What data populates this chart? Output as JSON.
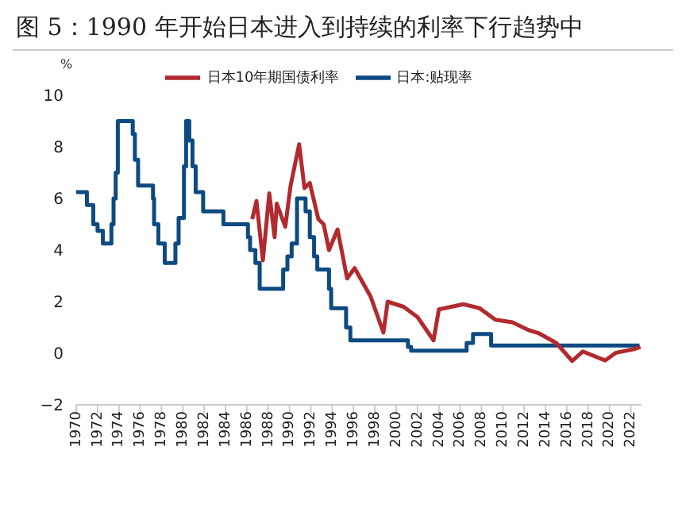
{
  "chart_data": {
    "type": "line",
    "title": "图 5：1990 年开始日本进入到持续的利率下行趋势中",
    "ylabel": "%",
    "xlim": [
      1970,
      2023
    ],
    "xticks": [
      1970,
      1972,
      1974,
      1976,
      1978,
      1980,
      1982,
      1984,
      1986,
      1988,
      1990,
      1992,
      1994,
      1996,
      1998,
      2000,
      2002,
      2004,
      2006,
      2008,
      2010,
      2012,
      2014,
      2016,
      2018,
      2020,
      2022
    ],
    "ylim": [
      -2,
      10
    ],
    "yticks": [
      -2,
      0,
      2,
      4,
      6,
      8,
      10
    ],
    "grid": false,
    "legend": "top",
    "marker": "none",
    "line_style": "solid",
    "series": [
      {
        "name": "日本:贴现率",
        "type": "step",
        "color": "#0e4a82",
        "x": [
          1970,
          1971,
          1971.6,
          1972,
          1972.5,
          1973.3,
          1973.5,
          1973.7,
          1973.9,
          1975.3,
          1975.5,
          1975.8,
          1977.2,
          1977.3,
          1977.7,
          1978.3,
          1979.3,
          1979.6,
          1980.1,
          1980.3,
          1980.6,
          1980.9,
          1981.2,
          1981.9,
          1983.8,
          1986.1,
          1986.3,
          1986.8,
          1987.2,
          1989.4,
          1989.8,
          1990.2,
          1990.7,
          1991.5,
          1991.9,
          1992.3,
          1992.6,
          1993.7,
          1993.9,
          1995.3,
          1995.7,
          2001.1,
          2001.4,
          2006.6,
          2007.2,
          2008.9,
          2022.8
        ],
        "values": [
          6.25,
          5.75,
          5.0,
          4.75,
          4.25,
          5.0,
          6.0,
          7.0,
          9.0,
          8.5,
          7.5,
          6.5,
          6.0,
          5.0,
          4.25,
          3.5,
          4.25,
          5.25,
          7.25,
          9.0,
          8.25,
          7.25,
          6.25,
          5.5,
          5.0,
          4.5,
          4.0,
          3.5,
          2.5,
          3.25,
          3.75,
          4.25,
          6.0,
          5.5,
          4.5,
          3.75,
          3.25,
          2.5,
          1.75,
          1.0,
          0.5,
          0.25,
          0.1,
          0.4,
          0.75,
          0.3,
          0.3
        ]
      },
      {
        "name": "日本10年期国债利率",
        "type": "line",
        "color": "#b22a2e",
        "x": [
          1986.5,
          1986.9,
          1987.5,
          1988.1,
          1988.6,
          1988.8,
          1989.6,
          1990.1,
          1990.9,
          1991.4,
          1991.9,
          1992.7,
          1993.2,
          1993.7,
          1994.5,
          1995.4,
          1996.1,
          1997.6,
          1998.8,
          1999.2,
          2000.7,
          2002,
          2003.5,
          2004,
          2006.3,
          2007.8,
          2009.3,
          2010.9,
          2012.4,
          2013.4,
          2015,
          2016.5,
          2017.5,
          2019.6,
          2020.6,
          2022.4,
          2022.9
        ],
        "values": [
          5.2,
          5.9,
          3.6,
          6.2,
          4.5,
          5.8,
          4.9,
          6.5,
          8.1,
          6.4,
          6.6,
          5.2,
          5.0,
          4.0,
          4.8,
          2.9,
          3.3,
          2.2,
          0.8,
          2.0,
          1.8,
          1.4,
          0.5,
          1.7,
          1.9,
          1.75,
          1.3,
          1.2,
          0.9,
          0.77,
          0.4,
          -0.3,
          0.07,
          -0.28,
          0.02,
          0.17,
          0.25
        ]
      }
    ]
  }
}
